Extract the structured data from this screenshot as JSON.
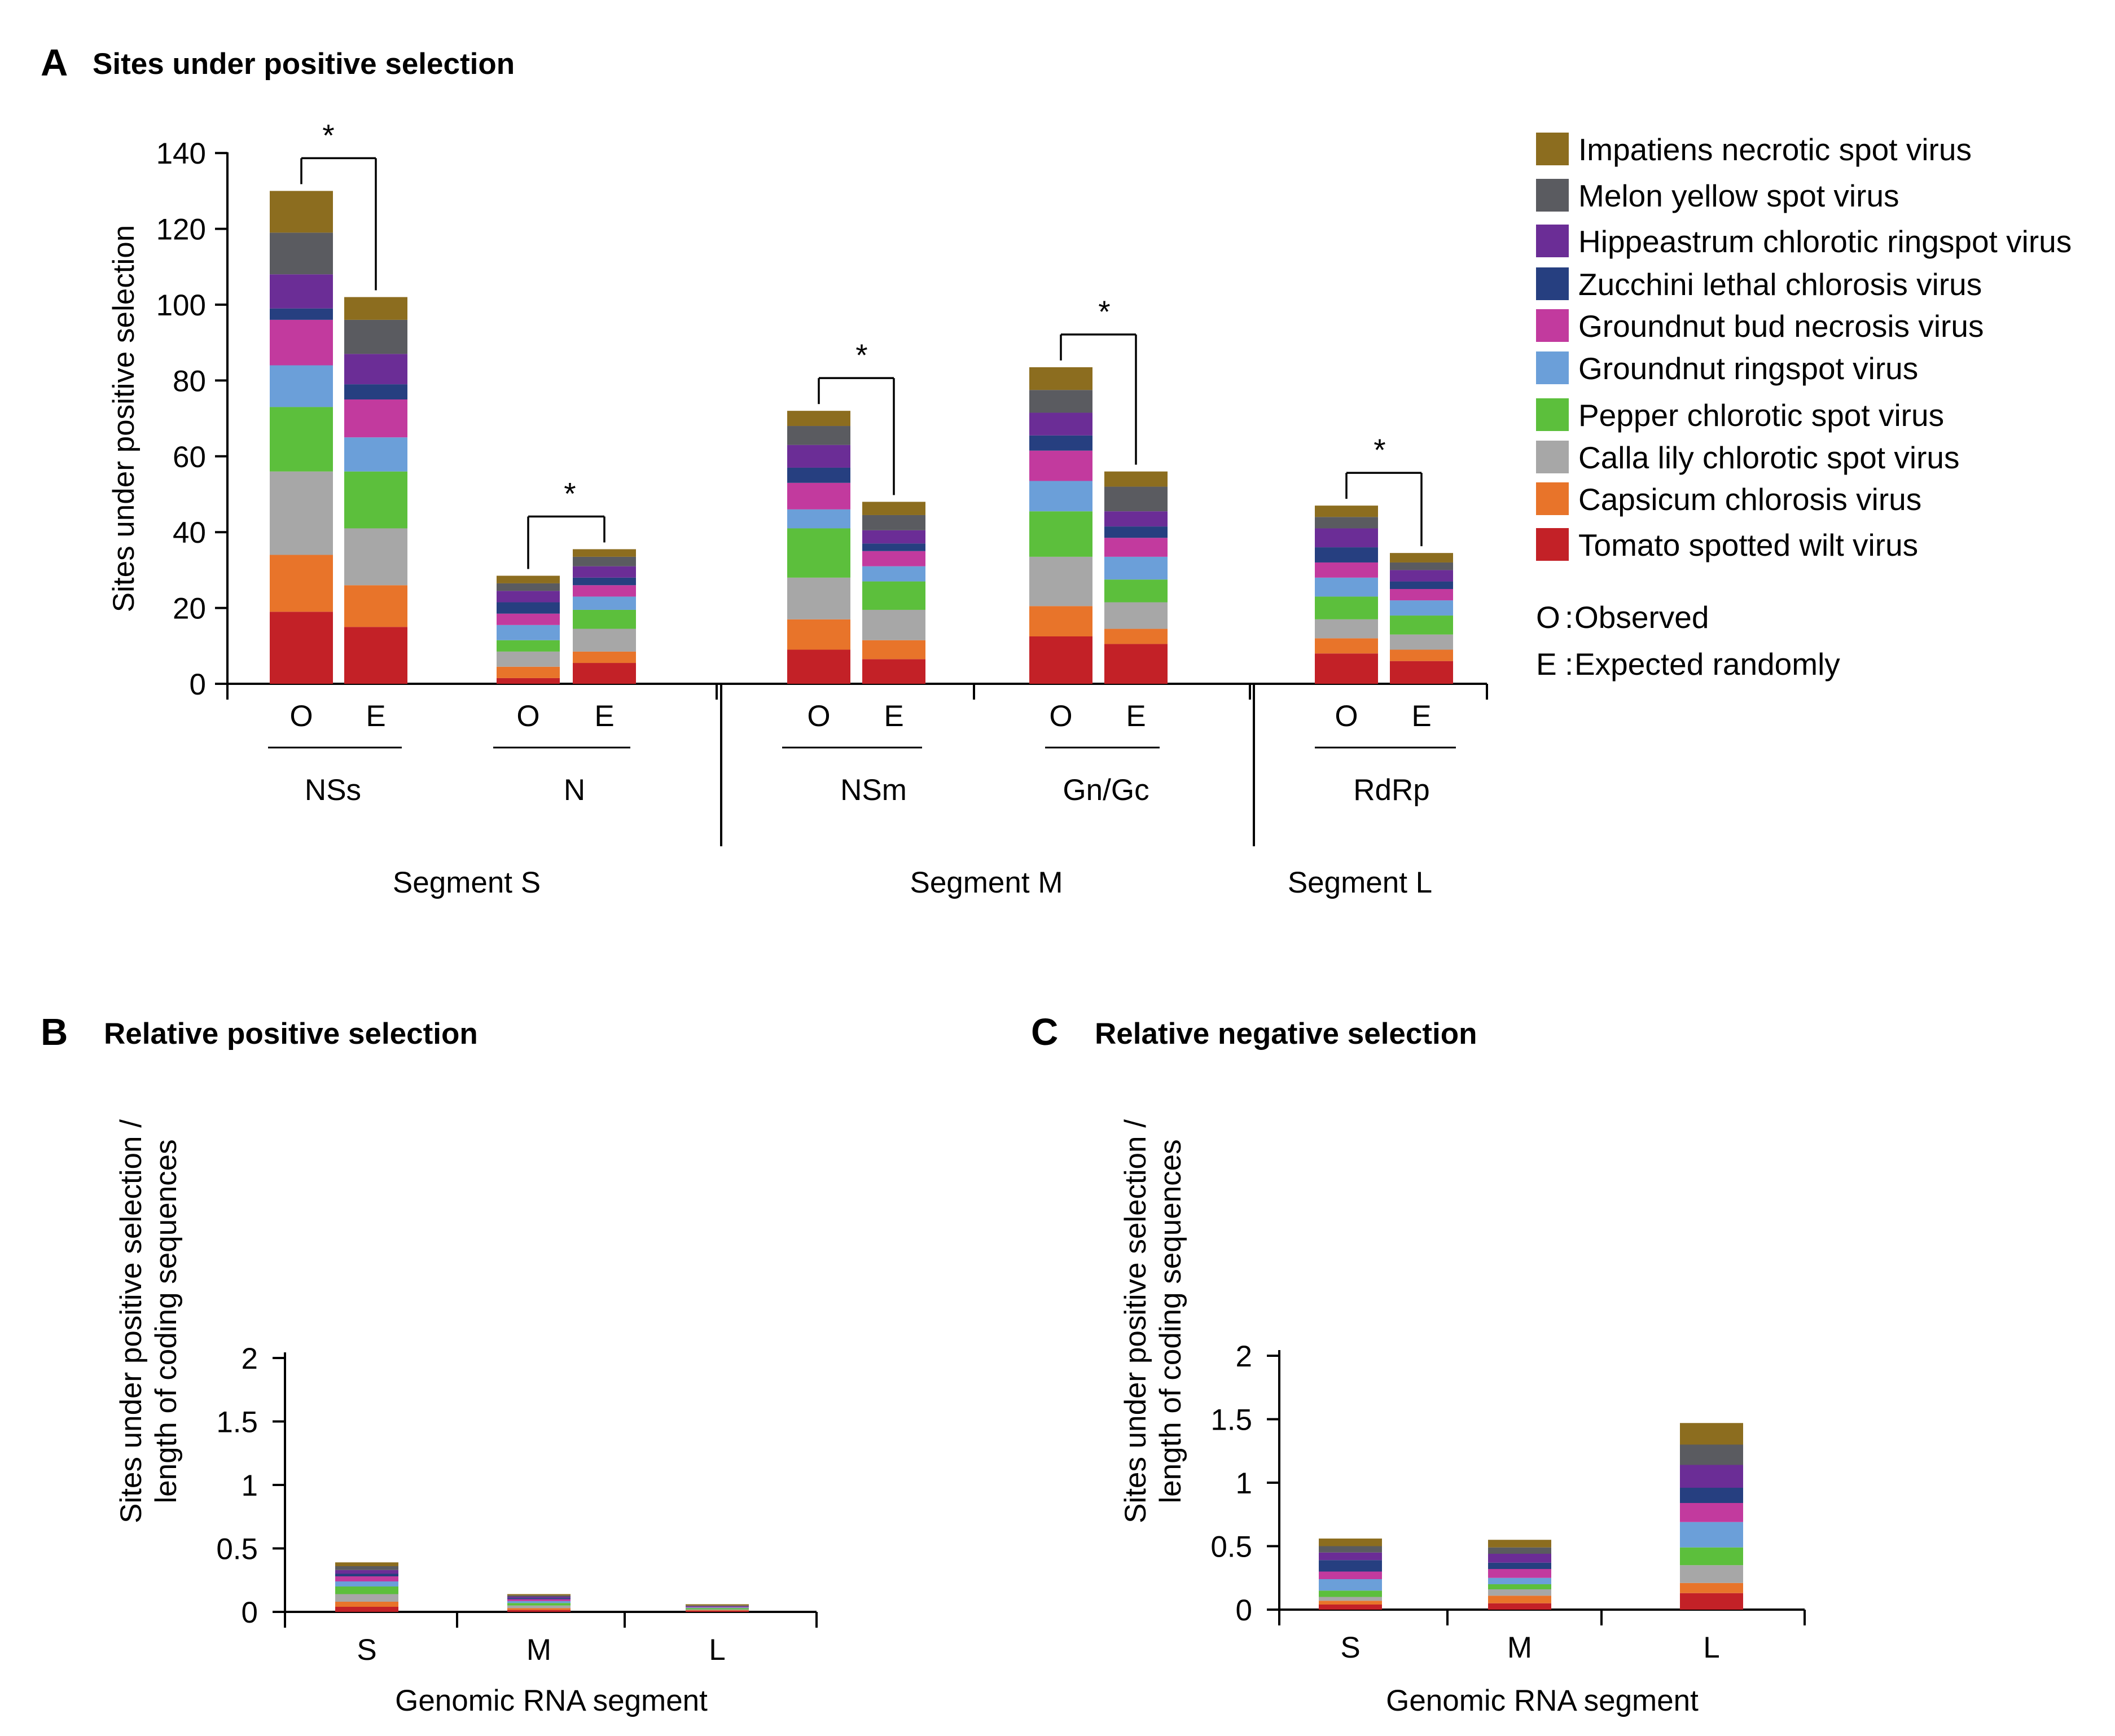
{
  "colors": {
    "Impatiens necrotic spot virus": "#8c6d1f",
    "Melon yellow spot virus": "#5a5b60",
    "Hippeastrum chlorotic ringspot virus": "#6b2d96",
    "Zucchini lethal chlorosis virus": "#263f80",
    "Groundnut bud necrosis virus": "#c23a9e",
    "Groundnut ringspot virus": "#6b9fd9",
    "Pepper chlorotic spot virus": "#5cbf3c",
    "Calla lily chlorotic spot virus": "#a7a7a7",
    "Capsicum chlorosis virus": "#e8742a",
    "Tomato spotted wilt virus": "#c32127"
  },
  "legend": {
    "viruses": [
      "Impatiens necrotic spot virus",
      "Melon yellow spot virus",
      "Hippeastrum chlorotic ringspot virus",
      "Zucchini lethal chlorosis virus",
      "Groundnut bud necrosis virus",
      "Groundnut ringspot virus",
      "Pepper chlorotic spot virus",
      "Calla lily chlorotic spot virus",
      "Capsicum chlorosis virus",
      "Tomato spotted wilt virus"
    ],
    "keys": [
      {
        "code": "O",
        "sep": ":",
        "text": "Observed"
      },
      {
        "code": "E",
        "sep": ":",
        "text": "Expected randomly"
      }
    ]
  },
  "chart_data": [
    {
      "panel": "A",
      "title": "Sites under positive selection",
      "type": "bar",
      "stacked": true,
      "ylabel": "Sites under positive selection",
      "ylim": [
        0,
        140
      ],
      "yticks": [
        0,
        20,
        40,
        60,
        80,
        100,
        120,
        140
      ],
      "stack_order": [
        "Tomato spotted wilt virus",
        "Capsicum chlorosis virus",
        "Calla lily chlorotic spot virus",
        "Pepper chlorotic spot virus",
        "Groundnut ringspot virus",
        "Groundnut bud necrosis virus",
        "Zucchini lethal chlorosis virus",
        "Hippeastrum chlorotic ringspot virus",
        "Melon yellow spot virus",
        "Impatiens necrotic spot virus"
      ],
      "groups": [
        {
          "gene": "NSs",
          "segment": "Segment S",
          "significant": true,
          "bars": [
            {
              "label": "O",
              "values": [
                19,
                15,
                22,
                17,
                11,
                12,
                3,
                9,
                11,
                11
              ]
            },
            {
              "label": "E",
              "values": [
                15,
                11,
                15,
                15,
                9,
                10,
                4,
                8,
                9,
                6
              ]
            }
          ]
        },
        {
          "gene": "N",
          "segment": "Segment S",
          "significant": true,
          "bars": [
            {
              "label": "O",
              "values": [
                1.5,
                3,
                4,
                3,
                4,
                3,
                3,
                3,
                2,
                2
              ]
            },
            {
              "label": "E",
              "values": [
                5.5,
                3,
                6,
                5,
                3.5,
                3,
                2,
                3,
                2.5,
                2
              ]
            }
          ]
        },
        {
          "gene": "NSm",
          "segment": "Segment M",
          "significant": true,
          "bars": [
            {
              "label": "O",
              "values": [
                9,
                8,
                11,
                13,
                5,
                7,
                4,
                6,
                5,
                4
              ]
            },
            {
              "label": "E",
              "values": [
                6.5,
                5,
                8,
                7.5,
                4,
                4,
                2,
                3.5,
                4,
                3.5
              ]
            }
          ]
        },
        {
          "gene": "Gn/Gc",
          "segment": "Segment M",
          "significant": true,
          "bars": [
            {
              "label": "O",
              "values": [
                12.5,
                8,
                13,
                12,
                8,
                8,
                4,
                6,
                6,
                6
              ]
            },
            {
              "label": "E",
              "values": [
                10.5,
                4,
                7,
                6,
                6,
                5,
                3,
                4,
                6.5,
                4
              ]
            }
          ]
        },
        {
          "gene": "RdRp",
          "segment": "Segment L",
          "significant": true,
          "bars": [
            {
              "label": "O",
              "values": [
                8,
                4,
                5,
                6,
                5,
                4,
                4,
                5,
                3,
                3
              ]
            },
            {
              "label": "E",
              "values": [
                6,
                3,
                4,
                5,
                4,
                3,
                2,
                3,
                2,
                2.5
              ]
            }
          ]
        }
      ],
      "segments": [
        "Segment S",
        "Segment M",
        "Segment L"
      ]
    },
    {
      "panel": "B",
      "title": "Relative positive selection",
      "type": "bar",
      "stacked": true,
      "xlabel": "Genomic RNA segment",
      "ylabel": [
        "Sites under positive selection /",
        "length of coding sequences"
      ],
      "ylim": [
        0,
        2
      ],
      "yticks": [
        "0",
        "0.5",
        "1",
        "1.5",
        "2"
      ],
      "categories": [
        "S",
        "M",
        "L"
      ],
      "stacks": [
        [
          0.04,
          0.04,
          0.06,
          0.06,
          0.04,
          0.04,
          0.02,
          0.03,
          0.03,
          0.03
        ],
        [
          0.015,
          0.015,
          0.02,
          0.02,
          0.015,
          0.015,
          0.01,
          0.01,
          0.01,
          0.01
        ],
        [
          0.01,
          0.005,
          0.005,
          0.01,
          0.005,
          0.005,
          0.003,
          0.003,
          0.004,
          0.01
        ]
      ]
    },
    {
      "panel": "C",
      "title": "Relative negative selection",
      "type": "bar",
      "stacked": true,
      "xlabel": "Genomic RNA segment",
      "ylabel": [
        "Sites under positive selection /",
        "length of coding sequences"
      ],
      "ylim": [
        0,
        2
      ],
      "yticks": [
        "0",
        "0.5",
        "1",
        "1.5",
        "2"
      ],
      "categories": [
        "S",
        "M",
        "L"
      ],
      "stacks": [
        [
          0.04,
          0.03,
          0.03,
          0.05,
          0.09,
          0.06,
          0.09,
          0.06,
          0.05,
          0.06
        ],
        [
          0.05,
          0.06,
          0.05,
          0.04,
          0.05,
          0.07,
          0.05,
          0.07,
          0.05,
          0.06
        ],
        [
          0.13,
          0.08,
          0.14,
          0.14,
          0.2,
          0.15,
          0.12,
          0.18,
          0.16,
          0.17
        ]
      ]
    }
  ]
}
